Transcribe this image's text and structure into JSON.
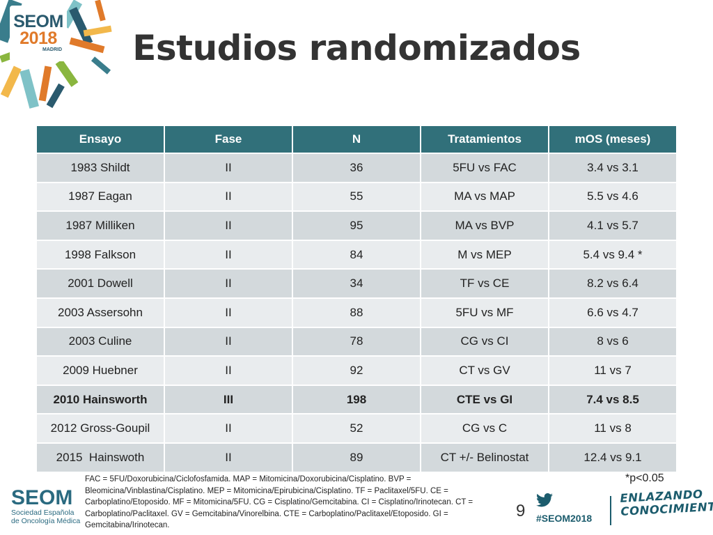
{
  "logo": {
    "line1": "SEOM",
    "line2": "2018",
    "line3": "MADRID"
  },
  "title": "Estudios randomizados",
  "table": {
    "headers": [
      "Ensayo",
      "Fase",
      "N",
      "Tratamientos",
      "mOS (meses)"
    ],
    "rows": [
      {
        "ensayo": "1983 Shildt",
        "fase": "II",
        "n": "36",
        "tratamientos": "5FU vs FAC",
        "mos": "3.4 vs 3.1"
      },
      {
        "ensayo": "1987 Eagan",
        "fase": "II",
        "n": "55",
        "tratamientos": "MA vs MAP",
        "mos": "5.5 vs 4.6"
      },
      {
        "ensayo": "1987 Milliken",
        "fase": "II",
        "n": "95",
        "tratamientos": "MA vs BVP",
        "mos": "4.1 vs 5.7"
      },
      {
        "ensayo": "1998 Falkson",
        "fase": "II",
        "n": "84",
        "tratamientos": "M vs MEP",
        "mos": "5.4 vs 9.4 *"
      },
      {
        "ensayo": "2001 Dowell",
        "fase": "II",
        "n": "34",
        "tratamientos": "TF vs CE",
        "mos": "8.2 vs 6.4"
      },
      {
        "ensayo": "2003 Assersohn",
        "fase": "II",
        "n": "88",
        "tratamientos": "5FU vs MF",
        "mos": "6.6 vs 4.7"
      },
      {
        "ensayo": "2003 Culine",
        "fase": "II",
        "n": "78",
        "tratamientos": "CG vs CI",
        "mos": "8 vs 6"
      },
      {
        "ensayo": "2009 Huebner",
        "fase": "II",
        "n": "92",
        "tratamientos": "CT vs GV",
        "mos": "11 vs 7"
      },
      {
        "ensayo": "2010 Hainsworth",
        "fase": "III",
        "n": "198",
        "tratamientos": "CTE vs GI",
        "mos": "7.4 vs 8.5"
      },
      {
        "ensayo": "2012 Gross-Goupil",
        "fase": "II",
        "n": "52",
        "tratamientos": "CG vs C",
        "mos": "11 vs 8"
      },
      {
        "ensayo": "2015  Hainswoth",
        "fase": "II",
        "n": "89",
        "tratamientos": "CT +/- Belinostat",
        "mos": "12.4 vs 9.1"
      }
    ]
  },
  "significance_note": "*p<0.05",
  "footnote": "FAC = 5FU/Doxorubicina/Ciclofosfamida. MAP = Mitomicina/Doxorubicina/Cisplatino. BVP = Bleomicina/Vinblastina/Cisplatino. MEP = Mitomicina/Epirubicina/Cisplatino. TF = Paclitaxel/5FU. CE = Carboplatino/Etoposido. MF = Mitomicina/5FU. CG = Cisplatino/Gemcitabina. CI = Cisplatino/Irinotecan. CT = Carboplatino/Paclitaxel. GV = Gemcitabina/Vinorelbina. CTE = Carboplatino/Paclitaxel/Etoposido. GI = Gemcitabina/Irinotecan.",
  "page_number": "9",
  "bottom_logo": {
    "word": "SEOM",
    "line1": "Sociedad Española",
    "line2": "de Oncología Médica"
  },
  "twitter_icon": "twitter-bird-icon",
  "hashtag": "#SEOM2018",
  "tagline": {
    "line1": "ENLAZANDO",
    "line2": "CONOCIMIENTO"
  },
  "colors": {
    "header": "#31707a",
    "row_odd": "#d3d9dc",
    "row_even": "#e9ecee",
    "brand_teal": "#2a6a80",
    "brand_orange": "#e07a2a"
  }
}
